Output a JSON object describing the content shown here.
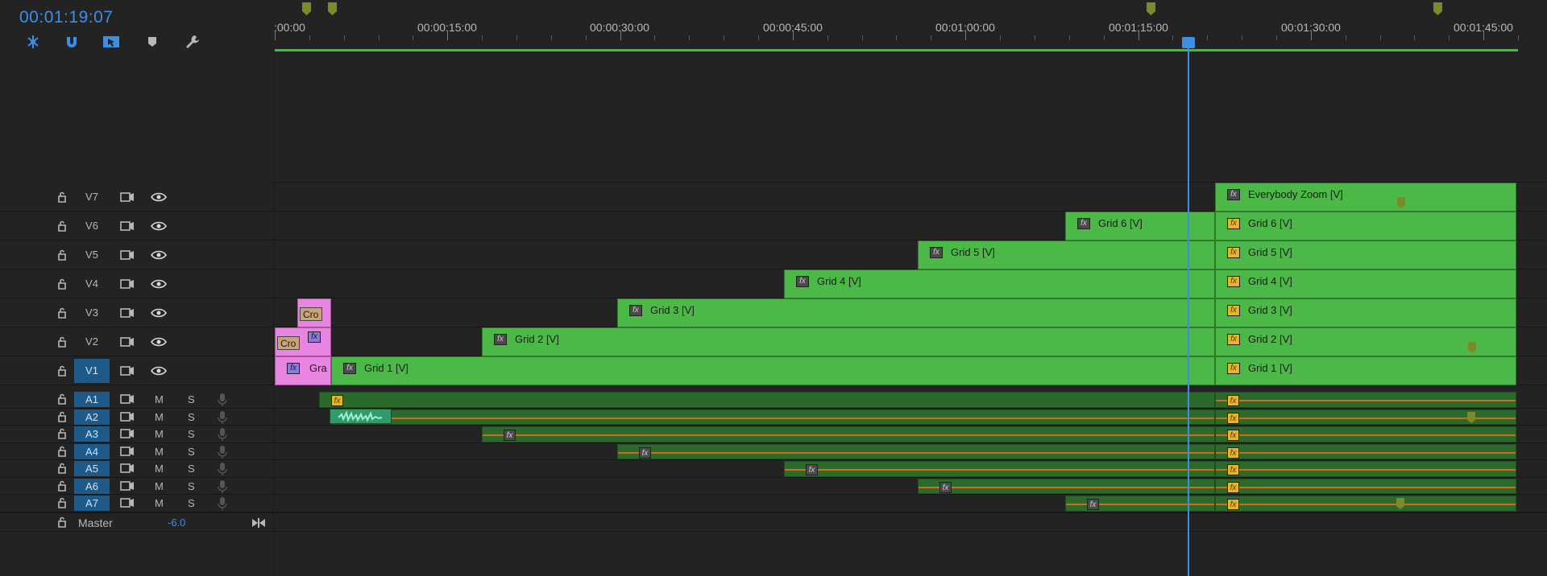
{
  "timecode": "00:01:19:07",
  "tools": [
    {
      "name": "ripple-snap-icon"
    },
    {
      "name": "magnet-icon"
    },
    {
      "name": "linked-selection-icon"
    },
    {
      "name": "marker-icon"
    },
    {
      "name": "wrench-icon"
    }
  ],
  "ruler": {
    "labels": [
      ":00:00",
      "00:00:15:00",
      "00:00:30:00",
      "00:00:45:00",
      "00:01:00:00",
      "00:01:15:00",
      "00:01:30:00",
      "00:01:45:00"
    ]
  },
  "video_tracks": [
    {
      "name": "V7",
      "active": false
    },
    {
      "name": "V6",
      "active": false
    },
    {
      "name": "V5",
      "active": false
    },
    {
      "name": "V4",
      "active": false
    },
    {
      "name": "V3",
      "active": false
    },
    {
      "name": "V2",
      "active": false
    },
    {
      "name": "V1",
      "active": true
    }
  ],
  "audio_tracks": [
    {
      "name": "A1",
      "m": "M",
      "s": "S"
    },
    {
      "name": "A2",
      "m": "M",
      "s": "S"
    },
    {
      "name": "A3",
      "m": "M",
      "s": "S"
    },
    {
      "name": "A4",
      "m": "M",
      "s": "S"
    },
    {
      "name": "A5",
      "m": "M",
      "s": "S"
    },
    {
      "name": "A6",
      "m": "M",
      "s": "S"
    },
    {
      "name": "A7",
      "m": "M",
      "s": "S"
    }
  ],
  "master": {
    "label": "Master",
    "value": "-6.0"
  },
  "video_clips": {
    "v7": {
      "name": "Everybody Zoom [V]"
    },
    "v6a": {
      "name": "Grid 6 [V]"
    },
    "v6b": {
      "name": "Grid 6 [V]"
    },
    "v5a": {
      "name": "Grid 5 [V]"
    },
    "v5b": {
      "name": "Grid 5 [V]"
    },
    "v4a": {
      "name": "Grid 4 [V]"
    },
    "v4b": {
      "name": "Grid 4 [V]"
    },
    "v3a": {
      "name": "Cro"
    },
    "v3b": {
      "name": "Grid 3 [V]"
    },
    "v3c": {
      "name": "Grid 3 [V]"
    },
    "v2a": {
      "name": "Cro"
    },
    "v2b": {
      "name": "Grid 2 [V]"
    },
    "v2c": {
      "name": "Grid 2 [V]"
    },
    "v1a": {
      "name": "Gra"
    },
    "v1b": {
      "name": "Grid 1 [V]"
    },
    "v1c": {
      "name": "Grid 1 [V]"
    }
  },
  "fx_label": "fx",
  "colors": {
    "accent": "#3d8fe6",
    "clip_green": "#4cb848",
    "clip_pink": "#e785e0",
    "audio_green": "#2b6a2b",
    "volume_line": "#d46a1e",
    "work_area": "#3bc23b"
  }
}
